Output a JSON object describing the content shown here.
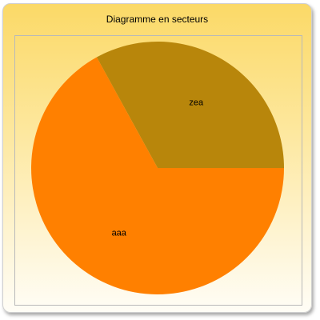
{
  "chart_data": {
    "type": "pie",
    "title": "Diagramme en secteurs",
    "slices": [
      {
        "label": "zea",
        "value": 33,
        "color": "#b8860b"
      },
      {
        "label": "aaa",
        "value": 67,
        "color": "#ff8000"
      }
    ]
  }
}
